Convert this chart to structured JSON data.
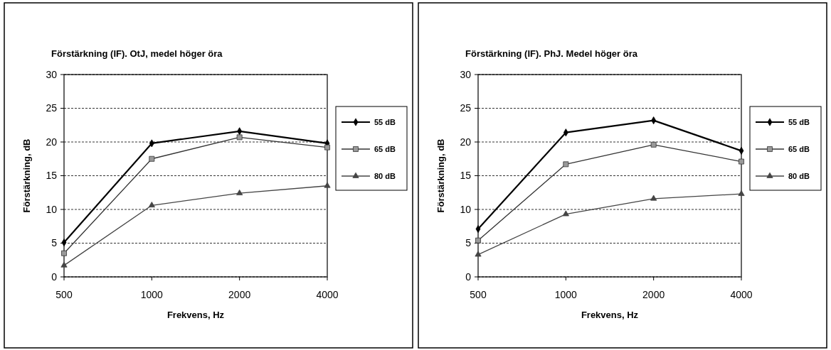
{
  "chart_data": [
    {
      "type": "line",
      "title": "Förstärkning (IF). OtJ, medel höger öra",
      "xlabel": "Frekvens, Hz",
      "ylabel": "Förstärkning, dB",
      "categories": [
        "500",
        "1000",
        "2000",
        "4000"
      ],
      "ylim": [
        0,
        30
      ],
      "yticks": [
        0,
        5,
        10,
        15,
        20,
        25,
        30
      ],
      "grid": "y",
      "legend": "right",
      "line_style": "solid",
      "series": [
        {
          "name": "55 dB",
          "color": "#000000",
          "marker": "diamond",
          "values": [
            5.1,
            19.8,
            21.6,
            19.8
          ]
        },
        {
          "name": "65 dB",
          "color": "#333333",
          "marker": "square",
          "values": [
            3.5,
            17.5,
            20.7,
            19.2
          ]
        },
        {
          "name": "80 dB",
          "color": "#444444",
          "marker": "triangle",
          "values": [
            1.7,
            10.6,
            12.4,
            13.5
          ]
        }
      ]
    },
    {
      "type": "line",
      "title": "Förstärkning (IF). PhJ. Medel höger öra",
      "xlabel": "Frekvens, Hz",
      "ylabel": "Förstärkning, dB",
      "categories": [
        "500",
        "1000",
        "2000",
        "4000"
      ],
      "ylim": [
        0,
        30
      ],
      "yticks": [
        0,
        5,
        10,
        15,
        20,
        25,
        30
      ],
      "grid": "y",
      "legend": "right",
      "line_style": "solid",
      "series": [
        {
          "name": "55 dB",
          "color": "#000000",
          "marker": "diamond",
          "values": [
            7.1,
            21.4,
            23.2,
            18.7
          ]
        },
        {
          "name": "65 dB",
          "color": "#333333",
          "marker": "square",
          "values": [
            5.4,
            16.7,
            19.6,
            17.1
          ]
        },
        {
          "name": "80 dB",
          "color": "#444444",
          "marker": "triangle",
          "values": [
            3.3,
            9.3,
            11.6,
            12.3
          ]
        }
      ]
    }
  ]
}
